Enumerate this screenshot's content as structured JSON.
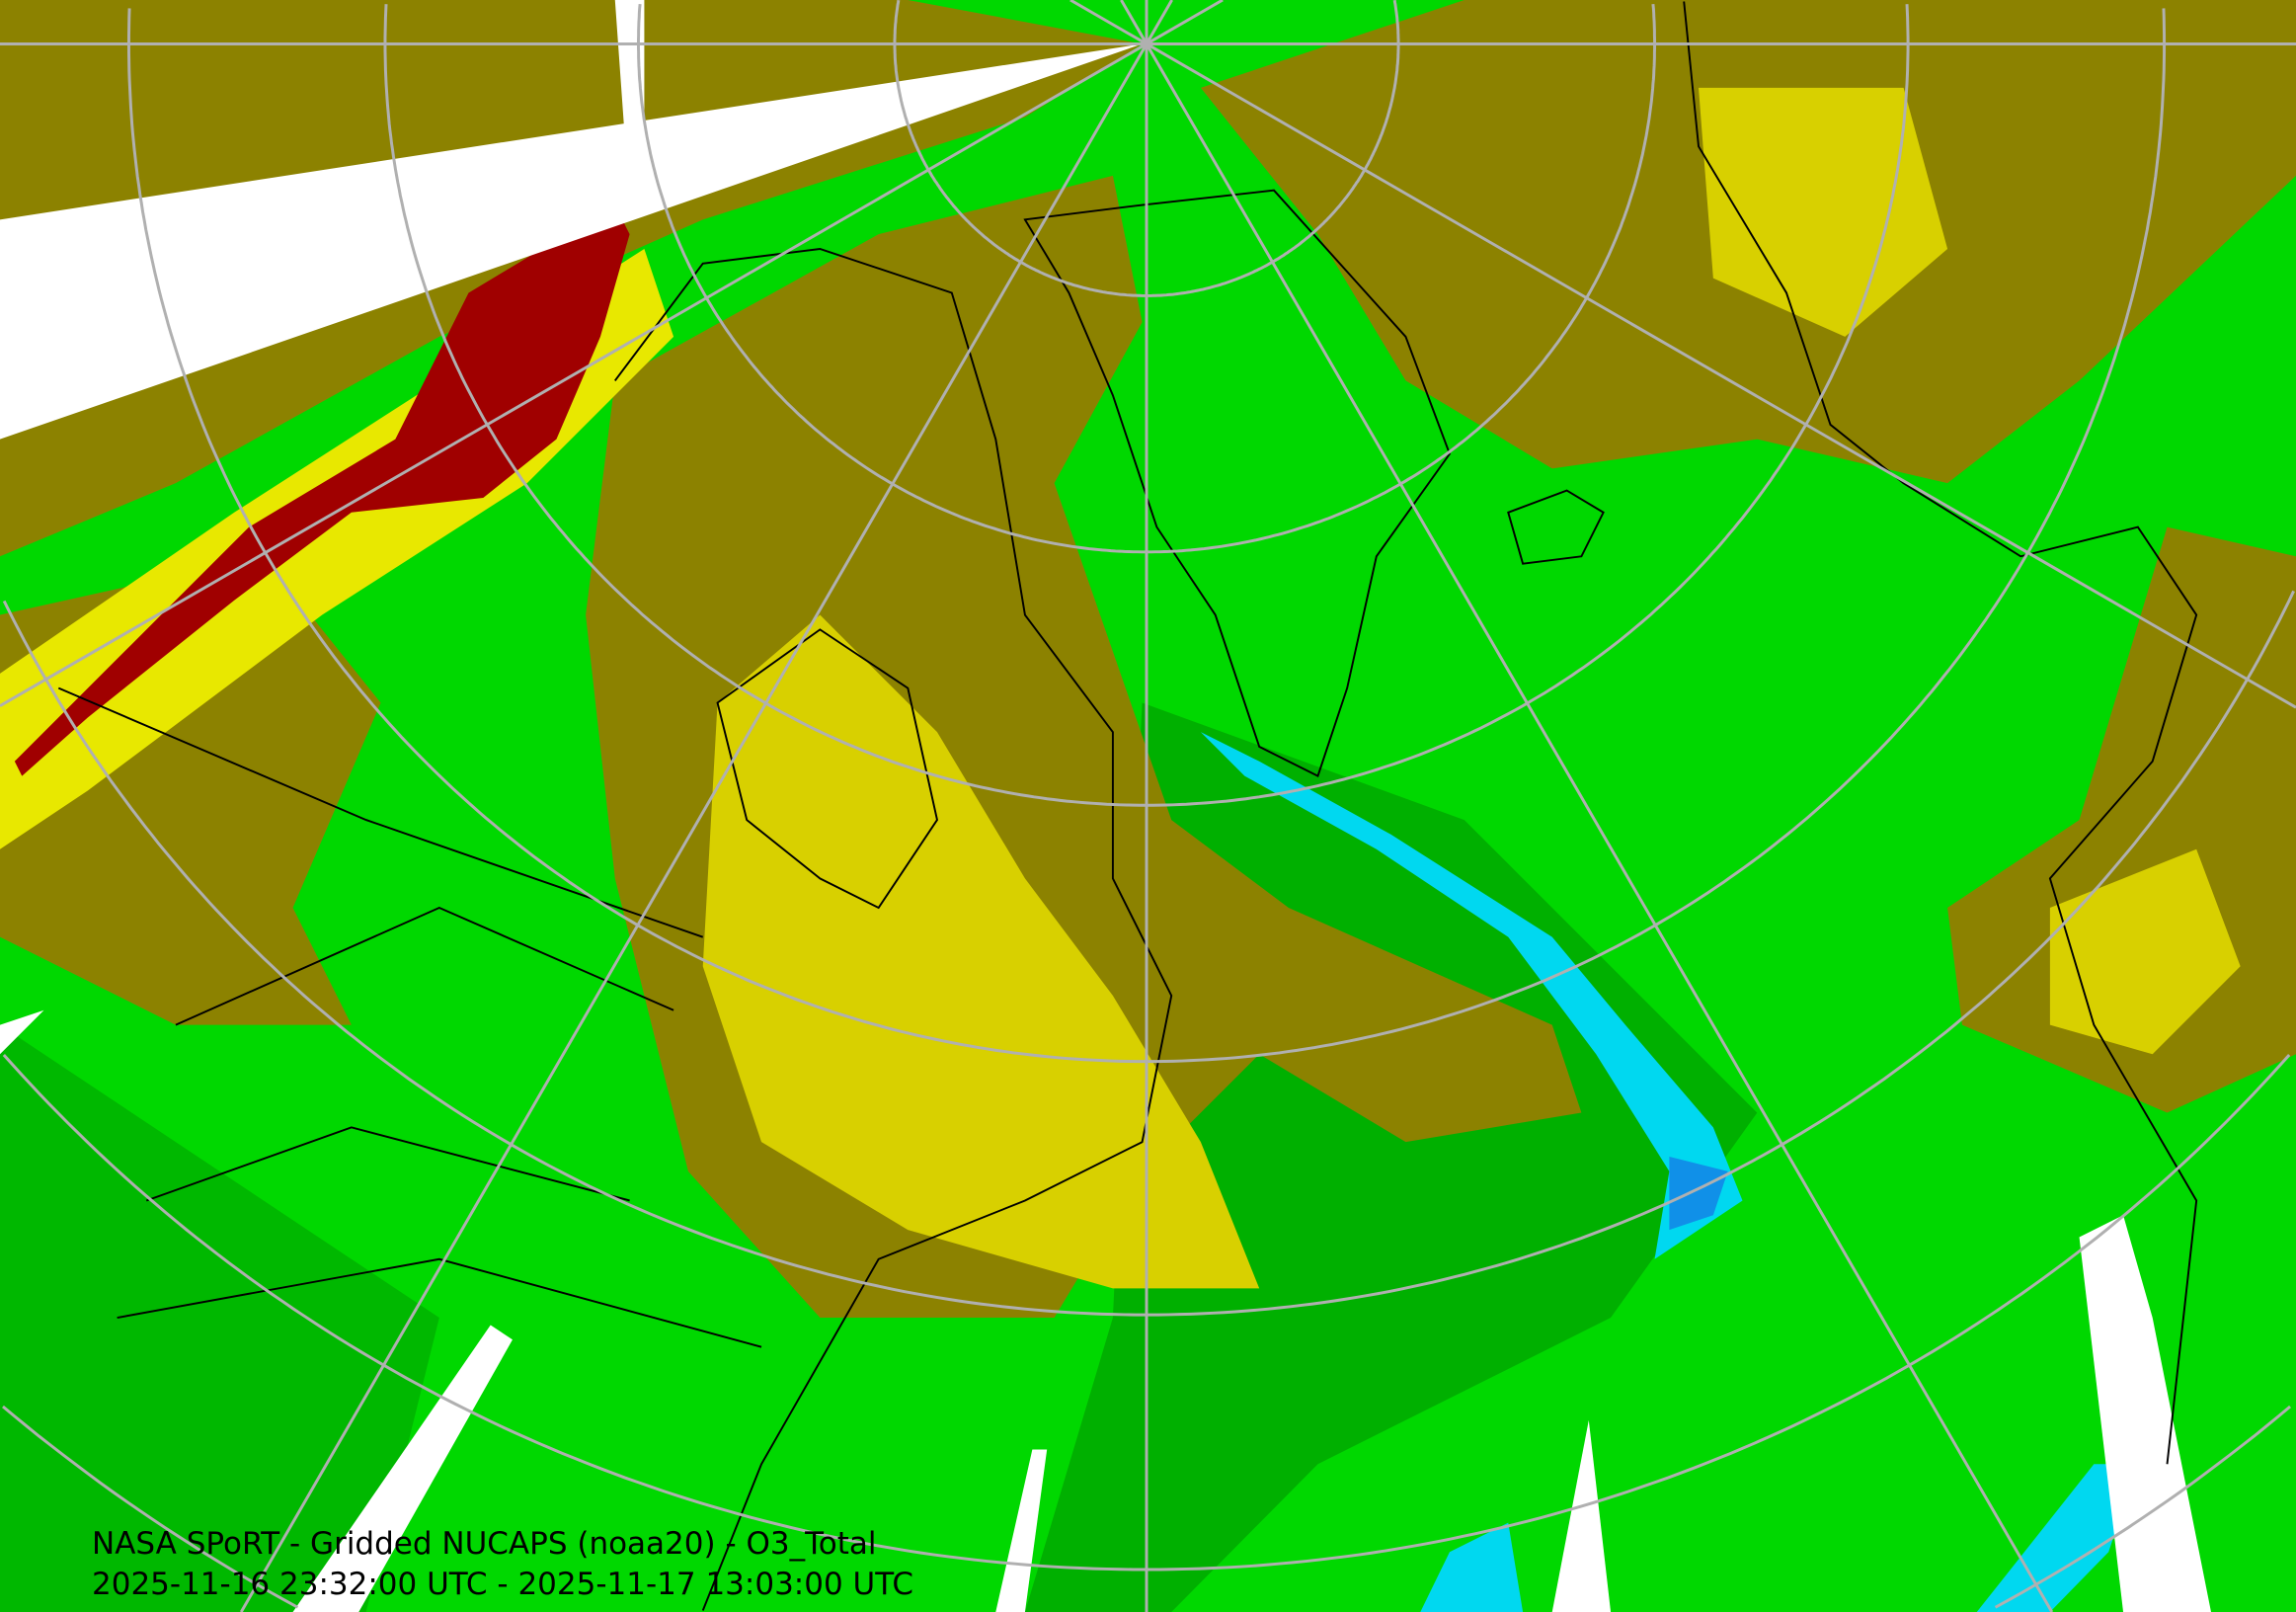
{
  "caption": {
    "title": "NASA SPoRT - Gridded NUCAPS (noaa20) - O3_Total",
    "time_range": "2025-11-16 23:32:00 UTC - 2025-11-17 13:03:00 UTC"
  },
  "map": {
    "projection": "north-polar-stereographic",
    "field": "O3_Total",
    "colors": {
      "background_green": "#00d800",
      "bright_green": "#00f000",
      "dark_green": "#00a800",
      "olive": "#8c8200",
      "khaki": "#b8b000",
      "yellow": "#e8e800",
      "dark_red": "#a00000",
      "cyan": "#00d8f0",
      "blue": "#1090e8",
      "missing_white": "#ffffff",
      "graticule": "#b0b0b0",
      "coastline": "#000000"
    }
  }
}
